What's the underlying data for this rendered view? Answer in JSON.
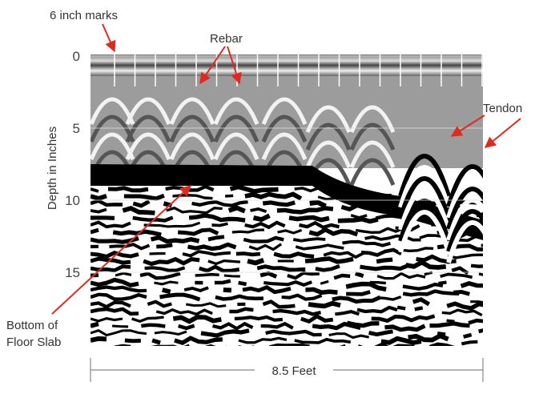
{
  "annotations": {
    "marks": "6 inch marks",
    "rebar": "Rebar",
    "tendon": "Tendon",
    "slab_line1": "Bottom of",
    "slab_line2": "Floor Slab"
  },
  "y_axis": {
    "label": "Depth in Inches",
    "ylim": [
      0,
      20
    ],
    "ticks": [
      0,
      5,
      10,
      15
    ]
  },
  "x_axis": {
    "label": "8.5 Feet"
  }
}
